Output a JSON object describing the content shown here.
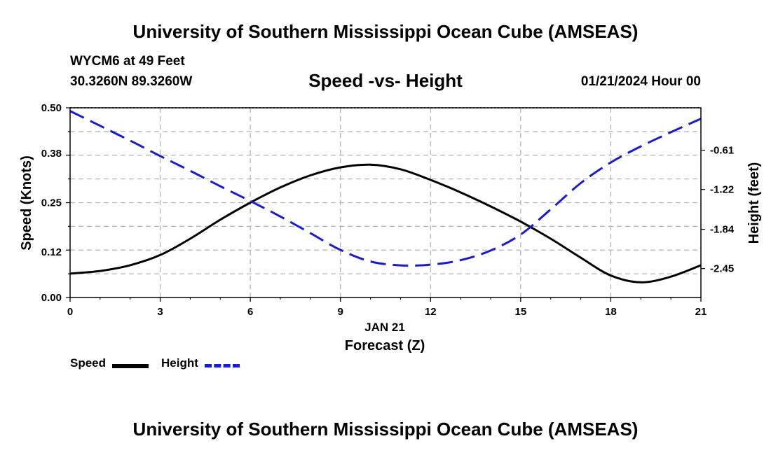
{
  "header": {
    "title": "University of Southern Mississippi Ocean Cube (AMSEAS)",
    "station": "WYCM6 at 49 Feet",
    "coords": "30.3260N  89.3260W",
    "subtitle": "Speed -vs- Height",
    "datetime": "01/21/2024 Hour 00"
  },
  "footer": {
    "title": "University of Southern Mississippi Ocean Cube (AMSEAS)"
  },
  "legend": {
    "speed_label": "Speed",
    "height_label": "Height"
  },
  "colors": {
    "speed": "#000000",
    "height": "#1a1ad2",
    "grid": "#b4b4b4"
  },
  "chart_data": {
    "type": "line",
    "xlabel_date": "JAN 21",
    "xlabel": "Forecast (Z)",
    "ylabel_left": "Speed (Knots)",
    "ylabel_right": "Height (feet)",
    "xlim": [
      0,
      21
    ],
    "ylim_left": [
      0,
      0.5
    ],
    "ylim_right": [
      -2.9,
      0.05
    ],
    "x_ticks": [
      "0",
      "3",
      "6",
      "9",
      "12",
      "15",
      "18",
      "21"
    ],
    "y_left_ticks": [
      "0.00",
      "0.12",
      "0.25",
      "0.38",
      "0.50"
    ],
    "y_right_ticks": [
      "-2.45",
      "-1.84",
      "-1.22",
      "-0.61"
    ],
    "y_right_tick_values": [
      -2.45,
      -1.84,
      -1.22,
      -0.61
    ],
    "series": [
      {
        "name": "Speed",
        "axis": "left",
        "style": "solid",
        "x": [
          0,
          1,
          2,
          3,
          4,
          5,
          6,
          7,
          8,
          9,
          10,
          11,
          12,
          13,
          14,
          15,
          16,
          17,
          18,
          19,
          20,
          21
        ],
        "values": [
          0.063,
          0.07,
          0.085,
          0.112,
          0.155,
          0.205,
          0.25,
          0.29,
          0.322,
          0.343,
          0.35,
          0.338,
          0.31,
          0.277,
          0.24,
          0.2,
          0.155,
          0.105,
          0.058,
          0.04,
          0.055,
          0.085
        ]
      },
      {
        "name": "Height",
        "axis": "right",
        "style": "dashed",
        "x": [
          0,
          1,
          2,
          3,
          4,
          5,
          6,
          7,
          8,
          9,
          10,
          11,
          12,
          13,
          14,
          15,
          16,
          17,
          18,
          19,
          20,
          21
        ],
        "values": [
          -0.0,
          -0.23,
          -0.46,
          -0.7,
          -0.93,
          -1.17,
          -1.4,
          -1.64,
          -1.9,
          -2.16,
          -2.34,
          -2.4,
          -2.39,
          -2.32,
          -2.17,
          -1.92,
          -1.53,
          -1.12,
          -0.8,
          -0.55,
          -0.33,
          -0.12
        ]
      }
    ]
  }
}
